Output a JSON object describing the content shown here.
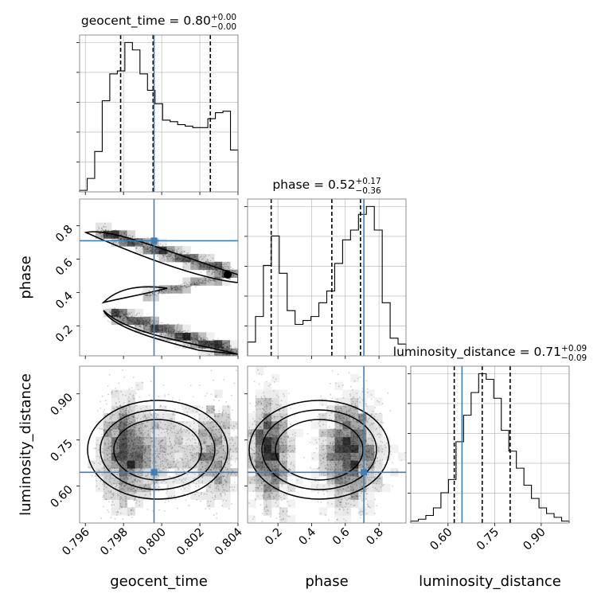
{
  "colors": {
    "truth": "#3f7fb6",
    "hist": "#000000",
    "grid": "#b0b0b0",
    "contour": "#000000"
  },
  "chart_data": {
    "type": "corner",
    "parameters": [
      {
        "name": "geocent_time",
        "xlabel": "geocent_time",
        "range": [
          0.7957,
          0.804
        ],
        "ticks": [
          "0.796",
          "0.798",
          "0.800",
          "0.802",
          "0.804"
        ],
        "tick_values": [
          0.796,
          0.798,
          0.8,
          0.802,
          0.804
        ],
        "truth": 0.7996
      },
      {
        "name": "phase",
        "xlabel": "phase",
        "range": [
          0.02,
          0.96
        ],
        "ticks": [
          "0.2",
          "0.4",
          "0.6",
          "0.8"
        ],
        "tick_values": [
          0.2,
          0.4,
          0.6,
          0.8
        ],
        "truth": 0.71
      },
      {
        "name": "luminosity_distance",
        "xlabel": "luminosity_distance",
        "range": [
          0.48,
          0.99
        ],
        "ticks": [
          "0.60",
          "0.75",
          "0.90"
        ],
        "tick_values": [
          0.6,
          0.75,
          0.9
        ],
        "truth": 0.645
      }
    ],
    "ylabels": [
      "phase",
      "luminosity_distance"
    ],
    "diagonal": [
      {
        "param": "geocent_time",
        "title_main": "geocent_time = 0.80",
        "title_sup": "+0.00",
        "title_sub": "−0.00",
        "quantiles": [
          0.79785,
          0.79955,
          0.80255
        ],
        "bin_counts": [
          1,
          9,
          27,
          61,
          79,
          81,
          100,
          95,
          79,
          68,
          59,
          48,
          47,
          45,
          44,
          43,
          43,
          49,
          53,
          54,
          28
        ]
      },
      {
        "param": "phase",
        "title_main": "phase = 0.52",
        "title_sup": "+0.17",
        "title_sub": "−0.36",
        "quantiles": [
          0.16,
          0.52,
          0.69
        ],
        "bin_counts": [
          7,
          20,
          46,
          61,
          42,
          23,
          16,
          18,
          20,
          27,
          33,
          47,
          59,
          64,
          72,
          76,
          64,
          27,
          9,
          6
        ]
      },
      {
        "param": "luminosity_distance",
        "title_main": "luminosity_distance = 0.71",
        "title_sup": "+0.09",
        "title_sub": "−0.09",
        "quantiles": [
          0.62,
          0.71,
          0.8
        ],
        "bin_counts": [
          1,
          2,
          4,
          8,
          16,
          23,
          43,
          57,
          69,
          79,
          76,
          66,
          49,
          38,
          29,
          20,
          13,
          8,
          5,
          3,
          1
        ]
      }
    ],
    "pairs": [
      {
        "x": "geocent_time",
        "y": "phase"
      },
      {
        "x": "geocent_time",
        "y": "luminosity_distance"
      },
      {
        "x": "phase",
        "y": "luminosity_distance"
      }
    ]
  }
}
